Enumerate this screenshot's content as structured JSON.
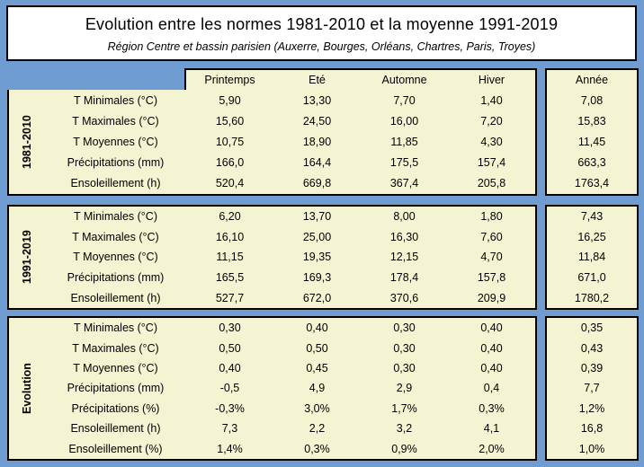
{
  "chart_data": {
    "type": "table",
    "title": "Evolution entre les normes 1981-2010 et la moyenne 1991-2019",
    "subtitle": "Région Centre et bassin parisien (Auxerre, Bourges, Orléans, Chartres, Paris, Troyes)",
    "season_columns": [
      "Printemps",
      "Eté",
      "Automne",
      "Hiver"
    ],
    "year_column": "Année",
    "blocks": [
      {
        "label": "1981-2010",
        "rows": [
          {
            "label": "T Minimales (°C)",
            "values": [
              "5,90",
              "13,30",
              "7,70",
              "1,40"
            ],
            "year": "7,08"
          },
          {
            "label": "T Maximales (°C)",
            "values": [
              "15,60",
              "24,50",
              "16,00",
              "7,20"
            ],
            "year": "15,83"
          },
          {
            "label": "T Moyennes (°C)",
            "values": [
              "10,75",
              "18,90",
              "11,85",
              "4,30"
            ],
            "year": "11,45"
          },
          {
            "label": "Précipitations (mm)",
            "values": [
              "166,0",
              "164,4",
              "175,5",
              "157,4"
            ],
            "year": "663,3"
          },
          {
            "label": "Ensoleillement (h)",
            "values": [
              "520,4",
              "669,8",
              "367,4",
              "205,8"
            ],
            "year": "1763,4"
          }
        ]
      },
      {
        "label": "1991-2019",
        "rows": [
          {
            "label": "T Minimales (°C)",
            "values": [
              "6,20",
              "13,70",
              "8,00",
              "1,80"
            ],
            "year": "7,43"
          },
          {
            "label": "T Maximales (°C)",
            "values": [
              "16,10",
              "25,00",
              "16,30",
              "7,60"
            ],
            "year": "16,25"
          },
          {
            "label": "T Moyennes (°C)",
            "values": [
              "11,15",
              "19,35",
              "12,15",
              "4,70"
            ],
            "year": "11,84"
          },
          {
            "label": "Précipitations (mm)",
            "values": [
              "165,5",
              "169,3",
              "178,4",
              "157,8"
            ],
            "year": "671,0"
          },
          {
            "label": "Ensoleillement (h)",
            "values": [
              "527,7",
              "672,0",
              "370,6",
              "209,9"
            ],
            "year": "1780,2"
          }
        ]
      },
      {
        "label": "Evolution",
        "rows": [
          {
            "label": "T Minimales (°C)",
            "values": [
              "0,30",
              "0,40",
              "0,30",
              "0,40"
            ],
            "year": "0,35"
          },
          {
            "label": "T Maximales (°C)",
            "values": [
              "0,50",
              "0,50",
              "0,30",
              "0,40"
            ],
            "year": "0,43"
          },
          {
            "label": "T Moyennes (°C)",
            "values": [
              "0,40",
              "0,45",
              "0,30",
              "0,40"
            ],
            "year": "0,39"
          },
          {
            "label": "Précipitations (mm)",
            "values": [
              "-0,5",
              "4,9",
              "2,9",
              "0,4"
            ],
            "year": "7,7"
          },
          {
            "label": "Précipitations (%)",
            "values": [
              "-0,3%",
              "3,0%",
              "1,7%",
              "0,3%"
            ],
            "year": "1,2%"
          },
          {
            "label": "Ensoleillement (h)",
            "values": [
              "7,3",
              "2,2",
              "3,2",
              "4,1"
            ],
            "year": "16,8"
          },
          {
            "label": "Ensoleillement (%)",
            "values": [
              "1,4%",
              "0,3%",
              "0,9%",
              "2,0%"
            ],
            "year": "1,0%"
          }
        ]
      }
    ]
  },
  "colors": {
    "page_background": "#6f9dd1",
    "panel_background": "#f4f4d3",
    "title_background": "#ffffff",
    "border": "#000000",
    "text": "#000000"
  }
}
